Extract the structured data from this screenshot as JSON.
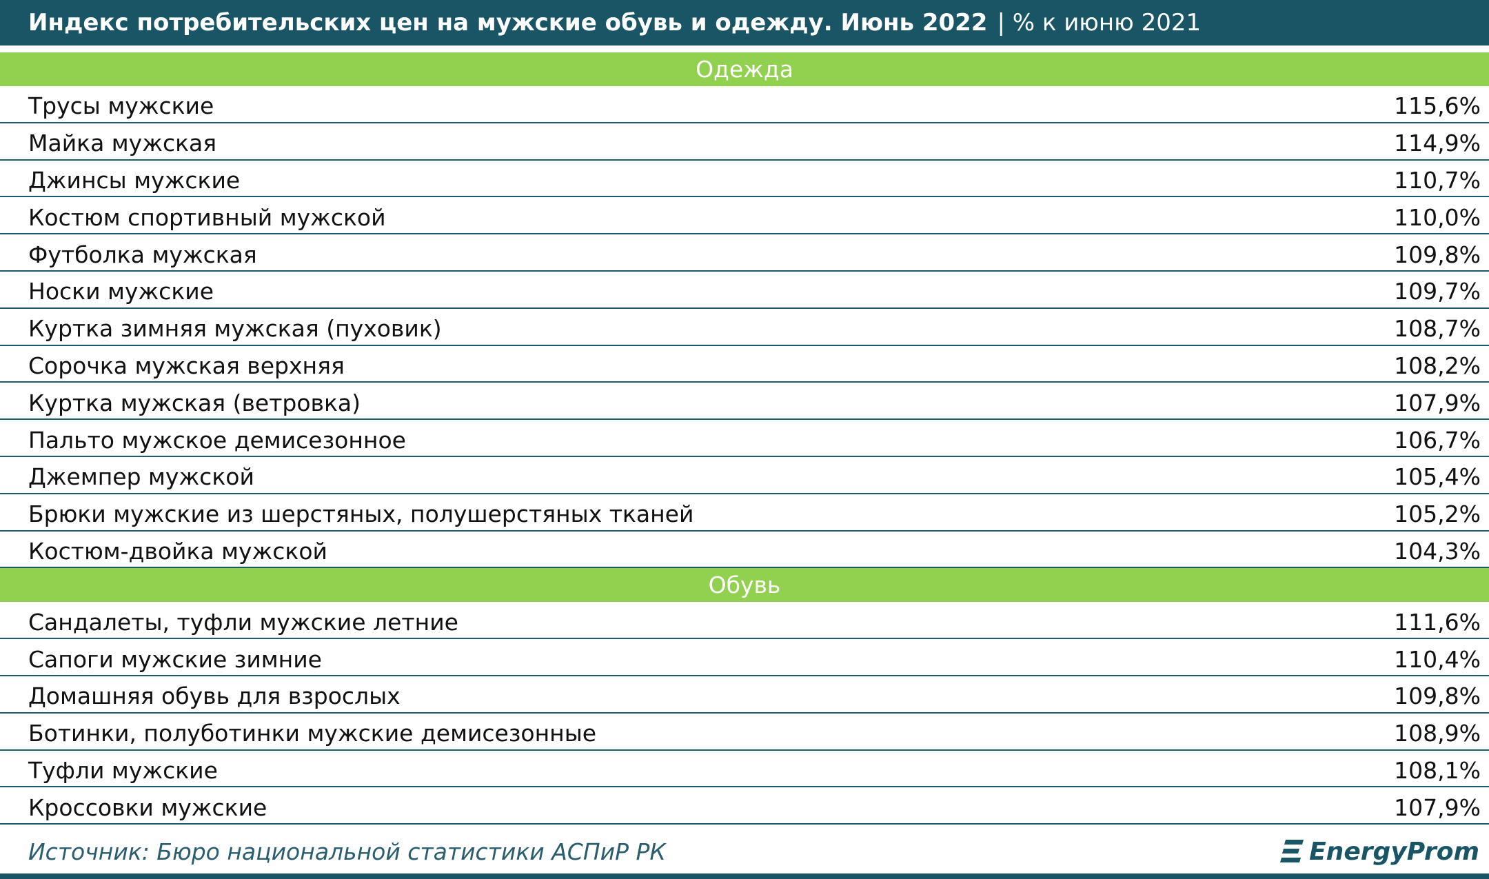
{
  "header": {
    "title": "Индекс потребительских цен на мужские обувь и одежду. Июнь 2022",
    "subtitle": "| % к июню 2021"
  },
  "sections": [
    {
      "title": "Одежда",
      "rows": [
        [
          "Трусы мужские",
          "115,6%"
        ],
        [
          "Майка мужская",
          "114,9%"
        ],
        [
          "Джинсы мужские",
          "110,7%"
        ],
        [
          "Костюм спортивный мужской",
          "110,0%"
        ],
        [
          "Футболка мужская",
          "109,8%"
        ],
        [
          "Носки мужские",
          "109,7%"
        ],
        [
          "Куртка зимняя мужская (пуховик)",
          "108,7%"
        ],
        [
          "Сорочка мужская верхняя",
          "108,2%"
        ],
        [
          "Куртка мужская (ветровка)",
          "107,9%"
        ],
        [
          "Пальто мужское демисезонное",
          "106,7%"
        ],
        [
          "Джемпер мужской",
          "105,4%"
        ],
        [
          "Брюки мужские из шерстяных, полушерстяных тканей",
          "105,2%"
        ],
        [
          "Костюм-двойка мужской",
          "104,3%"
        ]
      ]
    },
    {
      "title": "Обувь",
      "rows": [
        [
          "Сандалеты, туфли мужские летние",
          "111,6%"
        ],
        [
          "Сапоги мужские зимние",
          "110,4%"
        ],
        [
          "Домашняя обувь для взрослых",
          "109,8%"
        ],
        [
          "Ботинки, полуботинки мужские демисезонные",
          "108,9%"
        ],
        [
          "Туфли мужские",
          "108,1%"
        ],
        [
          "Кроссовки мужские",
          "107,9%"
        ]
      ]
    }
  ],
  "footer": {
    "source": "Источник: Бюро национальной статистики АСПиР РК",
    "logo": "EnergyProm"
  }
}
